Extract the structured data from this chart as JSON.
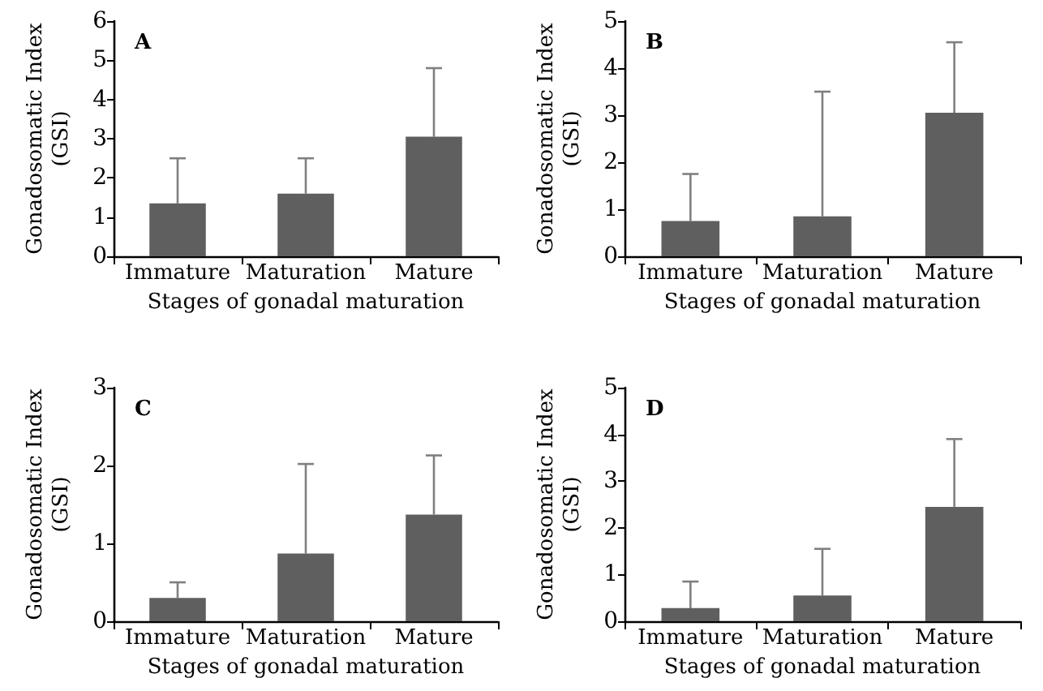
{
  "chart_data": [
    {
      "type": "bar",
      "title": "A",
      "xlabel": "Stages of gonadal maturation",
      "ylabel": "Gonadosomatic Index\n(GSI)",
      "categories": [
        "Immature",
        "Maturation",
        "Mature"
      ],
      "values": [
        1.35,
        1.6,
        3.05
      ],
      "errors": [
        [
          1.35,
          2.5
        ],
        [
          1.6,
          2.5
        ],
        [
          3.05,
          4.8
        ]
      ],
      "color": "#5f5f5f",
      "ylim": [
        0,
        6
      ],
      "yticks": [
        0,
        1,
        2,
        3,
        4,
        5,
        6
      ],
      "grid": false
    },
    {
      "type": "bar",
      "title": "B",
      "xlabel": "Stages of gonadal maturation",
      "ylabel": "Gonadosomatic Index\n(GSI)",
      "categories": [
        "Immature",
        "Maturation",
        "Mature"
      ],
      "values": [
        0.75,
        0.85,
        3.05
      ],
      "errors": [
        [
          0.75,
          1.75
        ],
        [
          0.85,
          3.5
        ],
        [
          3.05,
          4.55
        ]
      ],
      "color": "#5f5f5f",
      "ylim": [
        0,
        5
      ],
      "yticks": [
        0,
        1,
        2,
        3,
        4,
        5
      ],
      "grid": false
    },
    {
      "type": "bar",
      "title": "C",
      "xlabel": "Stages of gonadal maturation",
      "ylabel": "Gonadosomatic Index\n(GSI)",
      "categories": [
        "Immature",
        "Maturation",
        "Mature"
      ],
      "values": [
        0.3,
        0.87,
        1.37
      ],
      "errors": [
        [
          0.3,
          0.5
        ],
        [
          0.87,
          2.02
        ],
        [
          1.37,
          2.13
        ]
      ],
      "color": "#5f5f5f",
      "ylim": [
        0,
        3
      ],
      "yticks": [
        0,
        1,
        2,
        3
      ],
      "grid": false
    },
    {
      "type": "bar",
      "title": "D",
      "xlabel": "Stages of gonadal maturation",
      "ylabel": "Gonadosomatic Index\n(GSI)",
      "categories": [
        "Immature",
        "Maturation",
        "Mature"
      ],
      "values": [
        0.28,
        0.55,
        2.45
      ],
      "errors": [
        [
          0.28,
          0.85
        ],
        [
          0.55,
          1.55
        ],
        [
          2.45,
          3.9
        ]
      ],
      "color": "#5f5f5f",
      "ylim": [
        0,
        5
      ],
      "yticks": [
        0,
        1,
        2,
        3,
        4,
        5
      ],
      "grid": false
    }
  ]
}
